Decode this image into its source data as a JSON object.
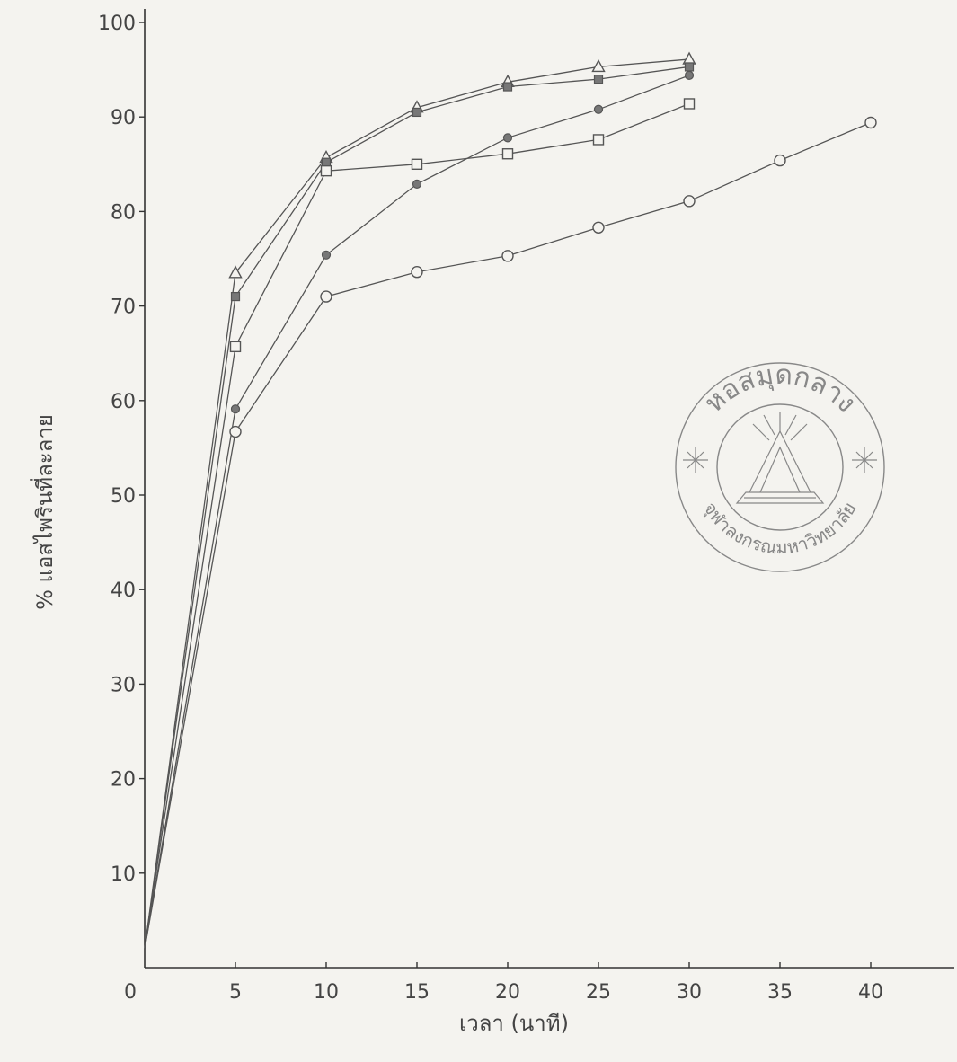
{
  "chart_data": {
    "type": "line",
    "title": "",
    "xlabel": "เวลา (นาที)",
    "ylabel": "% แอสไพรินที่ละลาย",
    "xlim": [
      0,
      45
    ],
    "ylim": [
      0,
      100
    ],
    "x_ticks": [
      0,
      5,
      10,
      15,
      20,
      25,
      30,
      35,
      40
    ],
    "y_ticks": [
      10,
      20,
      30,
      40,
      50,
      60,
      70,
      80,
      90,
      100
    ],
    "grid": false,
    "legend": "none",
    "series": [
      {
        "marker": "open-triangle",
        "x": [
          0,
          5,
          10,
          15,
          20,
          25,
          30
        ],
        "y": [
          2,
          73.5,
          85.7,
          91,
          93.7,
          95.3,
          96.1
        ]
      },
      {
        "marker": "filled-square",
        "x": [
          0,
          5,
          10,
          15,
          20,
          25,
          30
        ],
        "y": [
          2,
          71,
          85.2,
          90.5,
          93.2,
          94,
          95.3
        ]
      },
      {
        "marker": "open-square",
        "x": [
          0,
          5,
          10,
          15,
          20,
          25,
          30
        ],
        "y": [
          2,
          65.7,
          84.3,
          85,
          86.1,
          87.6,
          91.4
        ]
      },
      {
        "marker": "filled-circle",
        "x": [
          0,
          5,
          10,
          15,
          20,
          25,
          30
        ],
        "y": [
          2,
          59.1,
          75.4,
          82.9,
          87.8,
          90.8,
          94.4
        ]
      },
      {
        "marker": "open-circle",
        "x": [
          0,
          5,
          10,
          15,
          20,
          25,
          30,
          35,
          40
        ],
        "y": [
          2,
          56.7,
          71,
          73.6,
          75.3,
          78.3,
          81.1,
          85.4,
          89.4
        ]
      }
    ]
  },
  "seal": {
    "top_text": "หอสมุดกลาง",
    "bottom_text": "จุฬาลงกรณมหาวิทยาลัย",
    "color": "#888888"
  }
}
